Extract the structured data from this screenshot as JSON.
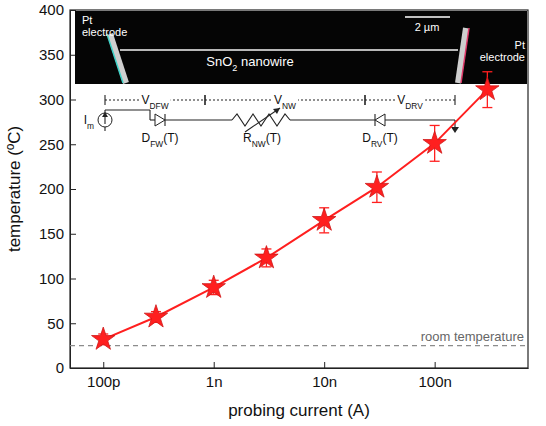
{
  "chart_data": {
    "type": "line",
    "x_label": "probing current (A)",
    "y_label": "temperature (ºC)",
    "log": "x",
    "grid": false,
    "xlim": [
      5e-11,
      7e-07
    ],
    "xticks": [
      {
        "value": 1e-10,
        "label": "100p"
      },
      {
        "value": 1e-09,
        "label": "1n"
      },
      {
        "value": 1e-08,
        "label": "10n"
      },
      {
        "value": 1e-07,
        "label": "100n"
      }
    ],
    "ylim": [
      0,
      400
    ],
    "yticks": [
      0,
      50,
      100,
      150,
      200,
      250,
      300,
      350,
      400
    ],
    "x": [
      1e-10,
      3e-10,
      1e-09,
      3e-09,
      1e-08,
      3e-08,
      1e-07,
      3e-07
    ],
    "series": [
      {
        "values": [
          32,
          57,
          90,
          123,
          165,
          202,
          251,
          311
        ],
        "errors": [
          6,
          6,
          8,
          10,
          14,
          17,
          20,
          20
        ],
        "color": "#ff1f1f",
        "marker": "star",
        "line_style": "solid"
      }
    ],
    "reference_lines": [
      {
        "y": 25,
        "label": "room temperature",
        "line_style": "dashed",
        "color": "#8c8c8c"
      }
    ],
    "annotations": [
      {
        "parts": [
          "Pt electrode"
        ]
      },
      {
        "parts": [
          "SnO",
          "2",
          " nanowire"
        ]
      },
      {
        "parts": [
          "2 µm"
        ]
      },
      {
        "parts": [
          "Pt electrode"
        ]
      },
      {
        "parts": [
          "V",
          "DFW"
        ]
      },
      {
        "parts": [
          "V",
          "NW"
        ]
      },
      {
        "parts": [
          "V",
          "DRV"
        ]
      },
      {
        "parts": [
          "I",
          "m"
        ]
      },
      {
        "parts": [
          "D",
          "FW",
          "(T)"
        ]
      },
      {
        "parts": [
          "R",
          "NW",
          "(T)"
        ]
      },
      {
        "parts": [
          "D",
          "RV",
          "(T)"
        ]
      }
    ]
  }
}
